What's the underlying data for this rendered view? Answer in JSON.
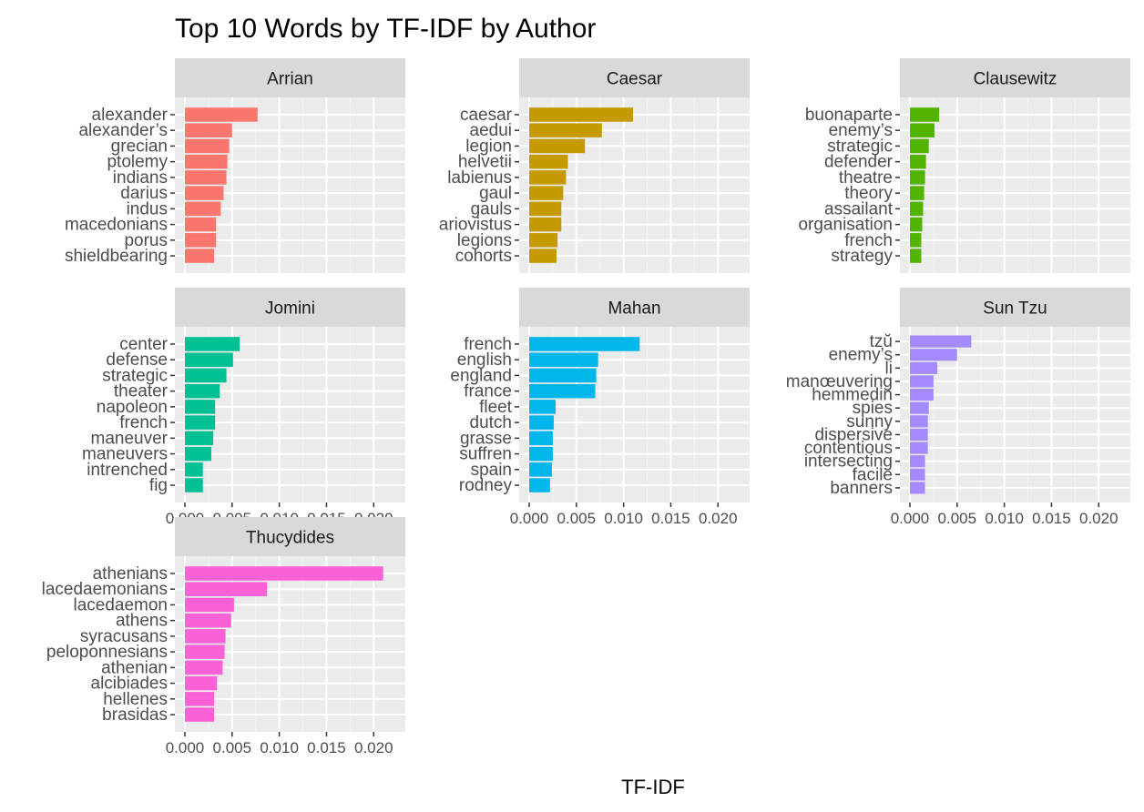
{
  "chart_data": {
    "type": "bar",
    "orientation": "horizontal",
    "title": "Top 10 Words by TF-IDF by Author",
    "xlabel": "TF-IDF",
    "ylabel": "",
    "xlim": [
      0,
      0.022
    ],
    "x_ticks": [
      "0.000",
      "0.005",
      "0.010",
      "0.015",
      "0.020"
    ],
    "grid": true,
    "legend": "none",
    "panels": [
      {
        "name": "Arrian",
        "color": "#F8766D",
        "categories": [
          "alexander",
          "alexander’s",
          "grecian",
          "ptolemy",
          "indians",
          "darius",
          "indus",
          "macedonians",
          "porus",
          "shieldbearing"
        ],
        "values": [
          0.0077,
          0.005,
          0.0047,
          0.0045,
          0.0044,
          0.0041,
          0.0038,
          0.0033,
          0.0033,
          0.0031
        ]
      },
      {
        "name": "Caesar",
        "color": "#C49A00",
        "categories": [
          "caesar",
          "aedui",
          "legion",
          "helvetii",
          "labienus",
          "gaul",
          "gauls",
          "ariovistus",
          "legions",
          "cohorts"
        ],
        "values": [
          0.011,
          0.0077,
          0.0059,
          0.0041,
          0.0039,
          0.0036,
          0.0034,
          0.0034,
          0.003,
          0.0029
        ]
      },
      {
        "name": "Clausewitz",
        "color": "#53B400",
        "categories": [
          "buonaparte",
          "enemy’s",
          "strategic",
          "defender",
          "theatre",
          "theory",
          "assailant",
          "organisation",
          "french",
          "strategy"
        ],
        "values": [
          0.0031,
          0.0026,
          0.002,
          0.0017,
          0.0016,
          0.0015,
          0.0014,
          0.0013,
          0.0012,
          0.0012
        ]
      },
      {
        "name": "Jomini",
        "color": "#00C094",
        "categories": [
          "center",
          "defense",
          "strategic",
          "theater",
          "napoleon",
          "french",
          "maneuver",
          "maneuvers",
          "intrenched",
          "fig"
        ],
        "values": [
          0.0058,
          0.0051,
          0.0044,
          0.0037,
          0.0032,
          0.0032,
          0.003,
          0.0028,
          0.0019,
          0.0019
        ]
      },
      {
        "name": "Mahan",
        "color": "#00B6EB",
        "categories": [
          "french",
          "english",
          "england",
          "france",
          "fleet",
          "dutch",
          "grasse",
          "suffren",
          "spain",
          "rodney"
        ],
        "values": [
          0.0117,
          0.0073,
          0.0071,
          0.007,
          0.0028,
          0.0026,
          0.0025,
          0.0025,
          0.0024,
          0.0022
        ]
      },
      {
        "name": "Sun Tzu",
        "color": "#A58AFF",
        "categories": [
          "tzŭ",
          "enemy’s",
          "li",
          "manœuvering",
          "hemmedin",
          "spies",
          "sunny",
          "dispersive",
          "contentious",
          "intersecting",
          "facile",
          "banners"
        ],
        "values": [
          0.0065,
          0.005,
          0.0029,
          0.0025,
          0.0025,
          0.002,
          0.0019,
          0.0019,
          0.0019,
          0.0016,
          0.0016,
          0.0016
        ]
      },
      {
        "name": "Thucydides",
        "color": "#FB61D7",
        "categories": [
          "athenians",
          "lacedaemonians",
          "lacedaemon",
          "athens",
          "syracusans",
          "peloponnesians",
          "athenian",
          "alcibiades",
          "hellenes",
          "brasidas"
        ],
        "values": [
          0.021,
          0.0087,
          0.0052,
          0.0049,
          0.0043,
          0.0042,
          0.004,
          0.0034,
          0.0031,
          0.0031
        ]
      }
    ]
  }
}
